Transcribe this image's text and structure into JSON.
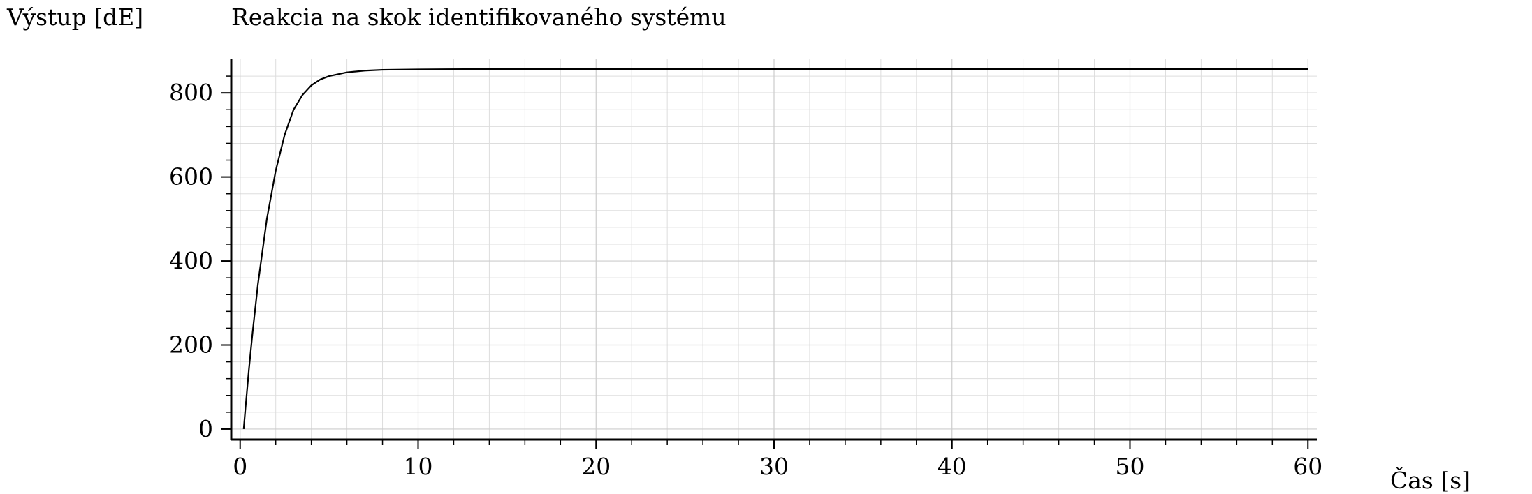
{
  "chart_data": {
    "type": "line",
    "title": "Reakcia na skok identifikovaného systému",
    "ylabel": "Výstup [dE]",
    "xlabel": "Čas [s]",
    "xlim": [
      -0.5,
      60.5
    ],
    "ylim": [
      -25,
      880
    ],
    "xticks": [
      0,
      10,
      20,
      30,
      40,
      50,
      60
    ],
    "xtick_labels": [
      "0",
      "10",
      "20",
      "30",
      "40",
      "50",
      "60"
    ],
    "yticks": [
      0,
      200,
      400,
      600,
      800
    ],
    "ytick_labels": [
      "0",
      "200",
      "400",
      "600",
      "800"
    ],
    "grid": true,
    "line_color": "#000000",
    "grid_color": "#cccccc",
    "series": [
      {
        "x": [
          0.2,
          0.3,
          0.5,
          0.7,
          1.0,
          1.5,
          2.0,
          2.5,
          3.0,
          3.5,
          4.0,
          4.5,
          5.0,
          6.0,
          7.0,
          8.0,
          10.0,
          15.0,
          20.0,
          30.0,
          40.0,
          50.0,
          60.0
        ],
        "y": [
          0,
          50,
          145,
          230,
          345,
          500,
          615,
          700,
          760,
          795,
          818,
          832,
          840,
          849,
          853,
          855,
          856,
          857,
          857,
          857,
          857,
          857,
          857
        ]
      }
    ]
  }
}
